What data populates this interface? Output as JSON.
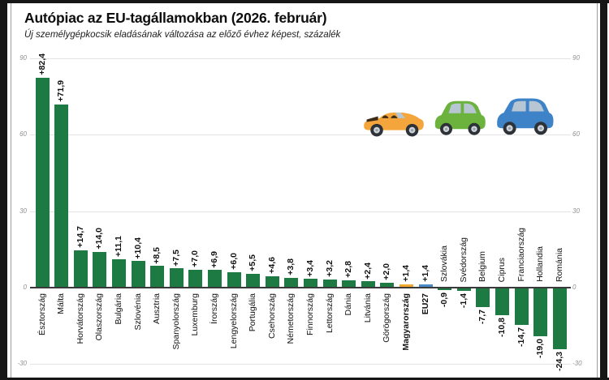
{
  "chart_data": {
    "type": "bar",
    "title": "Autópiac az EU-tagállamokban (2026. február)",
    "subtitle": "Új személygépkocsik eladásának változása az előző évhez képest, százalék",
    "unit": "%",
    "ylim": [
      -30,
      90
    ],
    "ytick_values": [
      90,
      60,
      30,
      0,
      -30
    ],
    "ytick_labels": [
      "90",
      "60",
      "30",
      "0",
      "-30"
    ],
    "grid": true,
    "legend_position": "none",
    "colors": {
      "positive_bar": "#1d7a42",
      "hungary_bar": "#f2a72e",
      "eu27_bar": "#4a89c8",
      "axis": "#3a3a3a",
      "gridline": "#e3e3e3"
    },
    "items": [
      {
        "name": "Észtország",
        "label": "+82,4",
        "value": 82.4
      },
      {
        "name": "Málta",
        "label": "+71,9",
        "value": 71.9
      },
      {
        "name": "Horvátország",
        "label": "+14,7",
        "value": 14.7
      },
      {
        "name": "Olaszország",
        "label": "+14,0",
        "value": 14.0
      },
      {
        "name": "Bulgária",
        "label": "+11,1",
        "value": 11.1
      },
      {
        "name": "Szlovénia",
        "label": "+10,4",
        "value": 10.4
      },
      {
        "name": "Ausztria",
        "label": "+8,5",
        "value": 8.5
      },
      {
        "name": "Spanyolország",
        "label": "+7,5",
        "value": 7.5
      },
      {
        "name": "Luxemburg",
        "label": "+7,0",
        "value": 7.0
      },
      {
        "name": "Írország",
        "label": "+6,9",
        "value": 6.9
      },
      {
        "name": "Lengyelország",
        "label": "+6,0",
        "value": 6.0
      },
      {
        "name": "Portugália",
        "label": "+5,5",
        "value": 5.5
      },
      {
        "name": "Csehország",
        "label": "+4,6",
        "value": 4.6
      },
      {
        "name": "Németország",
        "label": "+3,8",
        "value": 3.8
      },
      {
        "name": "Finnország",
        "label": "+3,4",
        "value": 3.4
      },
      {
        "name": "Lettország",
        "label": "+3,2",
        "value": 3.2
      },
      {
        "name": "Dánia",
        "label": "+2,8",
        "value": 2.8
      },
      {
        "name": "Litvánia",
        "label": "+2,4",
        "value": 2.4
      },
      {
        "name": "Görögország",
        "label": "+2,0",
        "value": 2.0
      },
      {
        "name": "Magyarország",
        "label": "+1,4",
        "value": 1.4,
        "color": "hungary_bar",
        "bold": true
      },
      {
        "name": "EU27",
        "label": "+1,4",
        "value": 1.4,
        "color": "eu27_bar",
        "bold": true
      },
      {
        "name": "Szlovákia",
        "label": "-0,9",
        "value": -0.9
      },
      {
        "name": "Svédország",
        "label": "-1,4",
        "value": -1.4
      },
      {
        "name": "Belgium",
        "label": "-7,7",
        "value": -7.7
      },
      {
        "name": "Ciprus",
        "label": "-10,8",
        "value": -10.8
      },
      {
        "name": "Franciaország",
        "label": "-14,7",
        "value": -14.7
      },
      {
        "name": "Hollandia",
        "label": "-19,0",
        "value": -19.0
      },
      {
        "name": "Románia",
        "label": "-24,3",
        "value": -24.3
      }
    ]
  },
  "icons": {
    "car_convertible": {
      "name": "orange-convertible-car-icon",
      "body": "#f4a63c",
      "dark": "#3c2c16"
    },
    "car_green": {
      "name": "green-car-icon",
      "body": "#6cb33e"
    },
    "car_blue": {
      "name": "blue-car-icon",
      "body": "#3e82c8"
    },
    "shared": {
      "glass": "#b6c6d2",
      "tire": "#2d3238",
      "rim": "#ccd2d8",
      "hub": "#959ba1"
    }
  }
}
